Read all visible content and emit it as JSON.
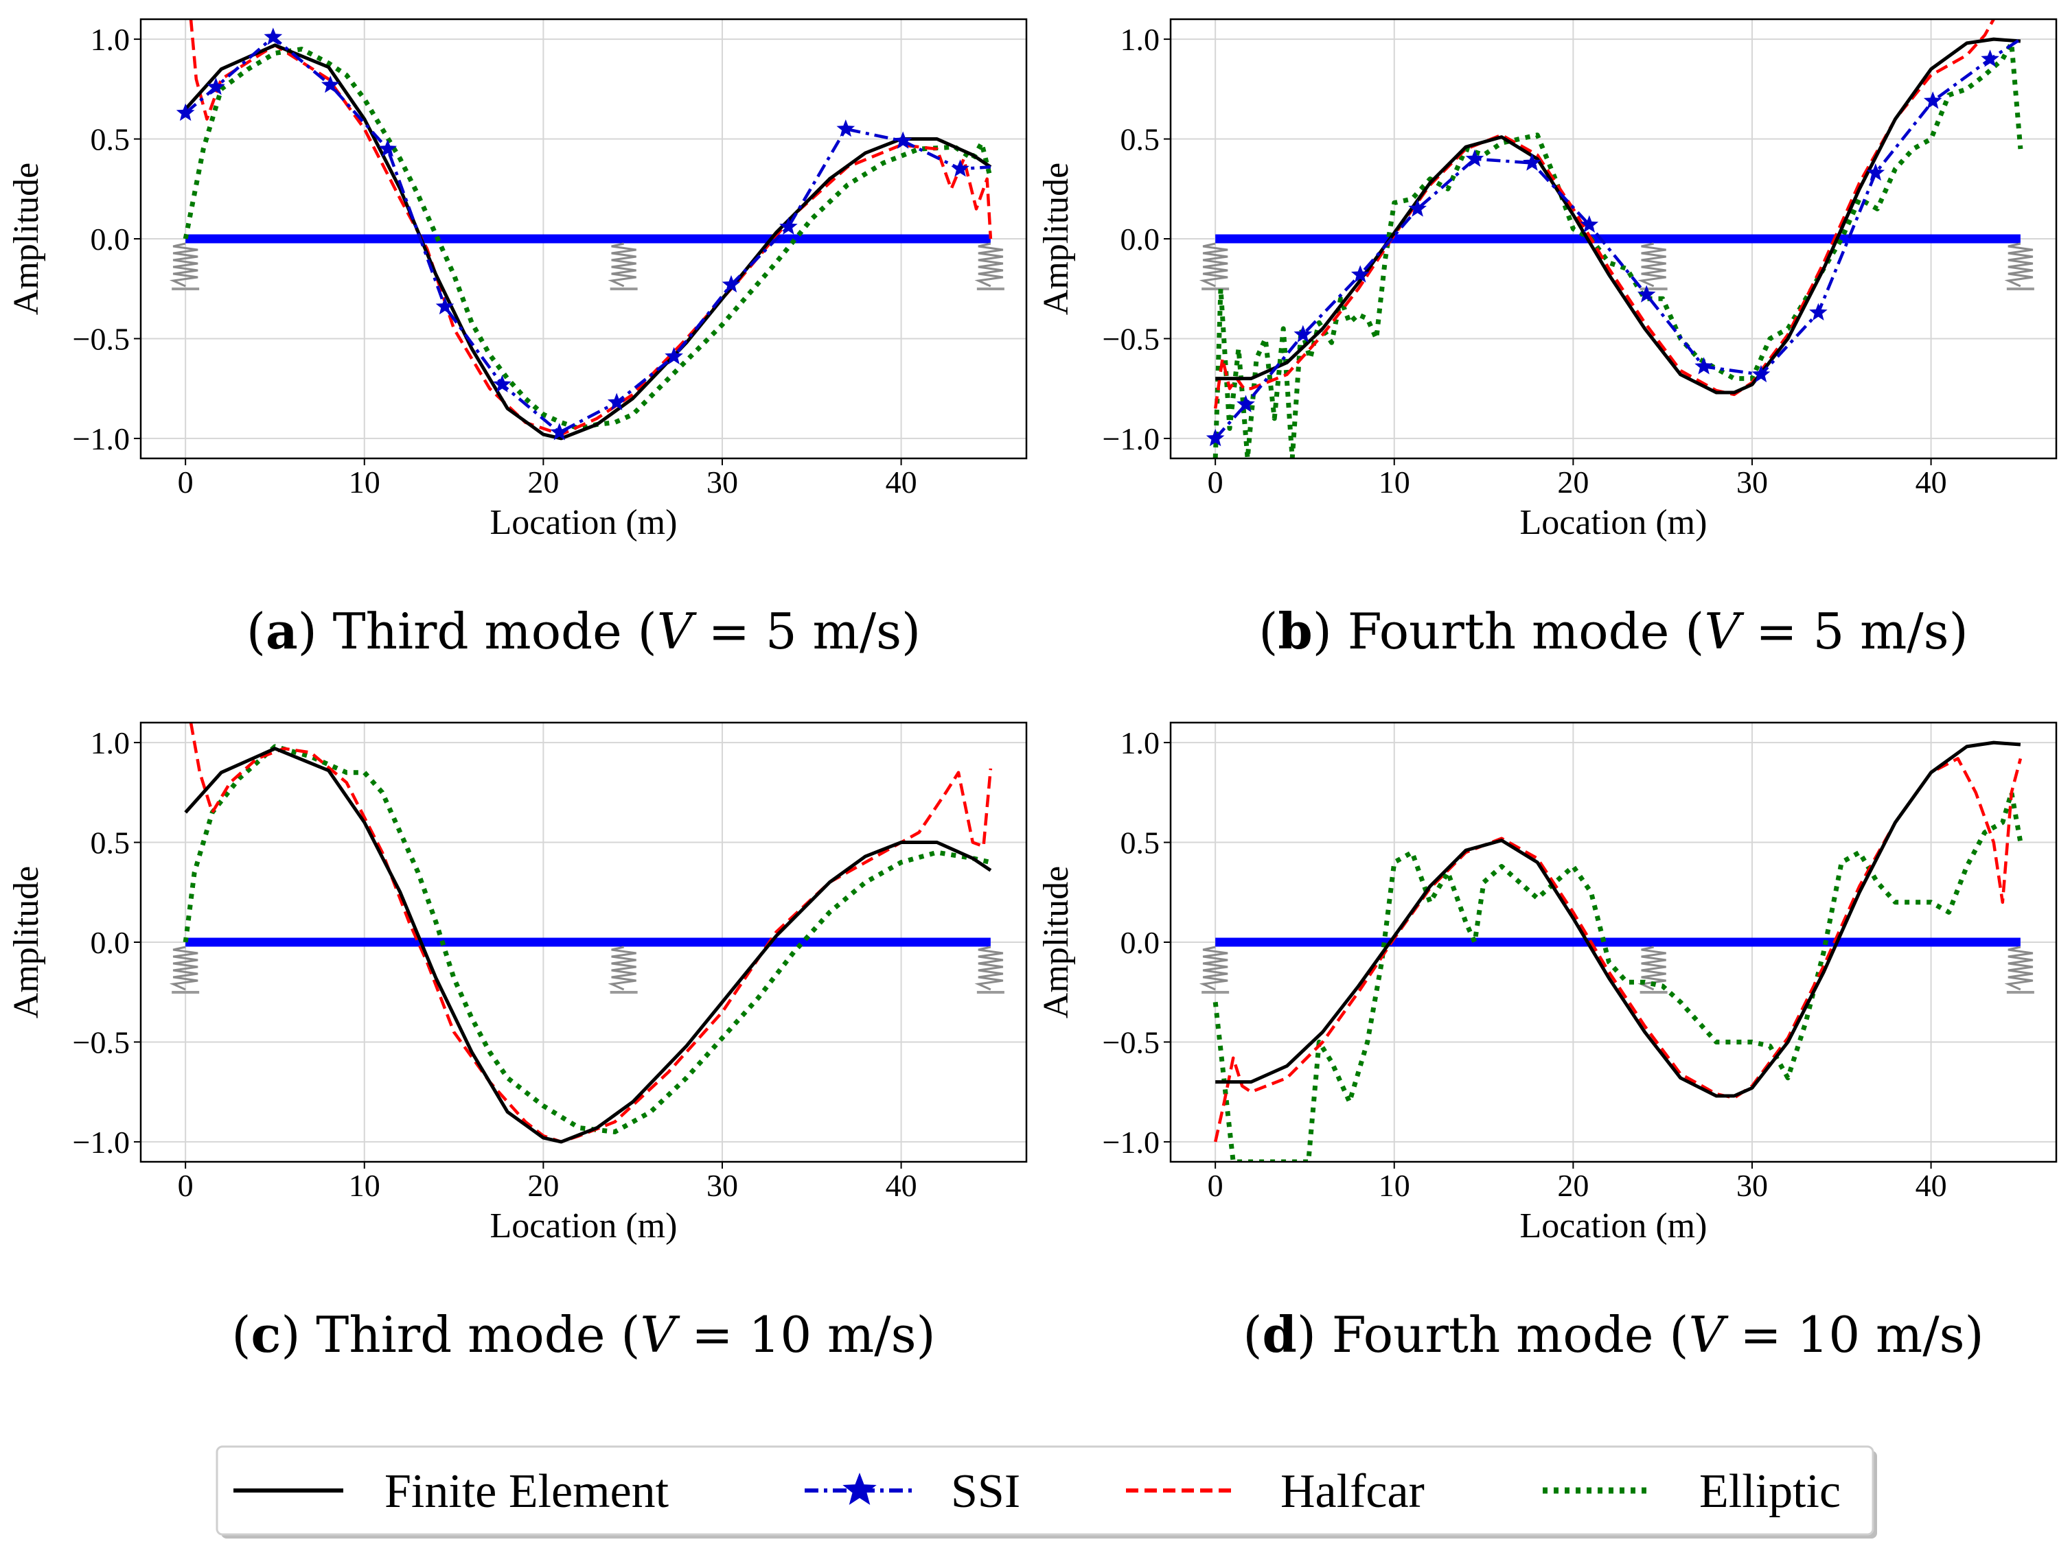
{
  "figure": {
    "legend": {
      "entries": [
        {
          "label": "Finite Element",
          "color": "#000000",
          "style": "solid"
        },
        {
          "label": "SSI",
          "color": "#0000cc",
          "style": "dashdot-star"
        },
        {
          "label": "Halfcar",
          "color": "#ff0000",
          "style": "dashed"
        },
        {
          "label": "Elliptic",
          "color": "#007a00",
          "style": "dotted"
        }
      ]
    },
    "beam_color": "#0000ff",
    "spring_locations": [
      0,
      24.5,
      45
    ]
  },
  "chart_data": [
    {
      "type": "line",
      "caption": {
        "letter": "a",
        "text": "Third mode (V = 5 m/s)",
        "mode": "Third mode",
        "speed": "5 m/s"
      },
      "xlabel": "Location (m)",
      "ylabel": "Amplitude",
      "xlim": [
        -2.5,
        47
      ],
      "ylim": [
        -1.1,
        1.1
      ],
      "xticks": [
        "0",
        "10",
        "20",
        "30",
        "40"
      ],
      "yticks": [
        "1.0",
        "0.5",
        "0.0",
        "−0.5",
        "−1.0"
      ],
      "series": [
        {
          "name": "Finite Element",
          "x": [
            0,
            2,
            5,
            8,
            10,
            12,
            14,
            16,
            18,
            20,
            21,
            23,
            25,
            28,
            30,
            33,
            36,
            38,
            40,
            42,
            44,
            45
          ],
          "y": [
            0.65,
            0.85,
            0.97,
            0.86,
            0.6,
            0.25,
            -0.18,
            -0.55,
            -0.85,
            -0.98,
            -1.0,
            -0.93,
            -0.8,
            -0.52,
            -0.3,
            0.03,
            0.3,
            0.43,
            0.5,
            0.5,
            0.42,
            0.36
          ]
        },
        {
          "name": "SSI",
          "x": [
            0,
            1.7,
            4.9,
            8.1,
            11.3,
            14.5,
            17.7,
            20.9,
            24.1,
            27.3,
            30.5,
            33.7,
            36.9,
            40.1,
            43.3,
            45
          ],
          "y": [
            0.63,
            0.76,
            1.01,
            0.77,
            0.45,
            -0.34,
            -0.73,
            -0.97,
            -0.82,
            -0.59,
            -0.23,
            0.06,
            0.55,
            0.49,
            0.35,
            0.36
          ]
        },
        {
          "name": "Halfcar",
          "x": [
            0.3,
            0.6,
            1.2,
            2,
            5,
            8,
            10,
            12,
            13.5,
            15,
            17,
            19,
            21,
            23,
            25,
            28,
            31,
            34,
            37,
            40,
            42,
            42.8,
            43.5,
            44.2,
            44.8,
            45
          ],
          "y": [
            1.1,
            0.8,
            0.6,
            0.8,
            0.97,
            0.8,
            0.55,
            0.2,
            -0.05,
            -0.45,
            -0.75,
            -0.92,
            -0.98,
            -0.9,
            -0.78,
            -0.5,
            -0.2,
            0.12,
            0.36,
            0.47,
            0.45,
            0.25,
            0.4,
            0.15,
            0.3,
            0.0
          ]
        },
        {
          "name": "Elliptic",
          "x": [
            0,
            1,
            2,
            3.5,
            5,
            6.5,
            8,
            9,
            10,
            11,
            12,
            13,
            14,
            15,
            16,
            17,
            18,
            19,
            20,
            21,
            22,
            23,
            24,
            25,
            27,
            30,
            33,
            35,
            37,
            39,
            41,
            43,
            44,
            44.5,
            45
          ],
          "y": [
            0.0,
            0.45,
            0.75,
            0.85,
            0.93,
            0.95,
            0.88,
            0.82,
            0.7,
            0.55,
            0.4,
            0.22,
            0.02,
            -0.18,
            -0.42,
            -0.58,
            -0.7,
            -0.8,
            -0.88,
            -0.92,
            -0.95,
            -0.93,
            -0.92,
            -0.88,
            -0.7,
            -0.43,
            -0.12,
            0.1,
            0.27,
            0.38,
            0.45,
            0.46,
            0.4,
            0.48,
            0.3
          ]
        }
      ]
    },
    {
      "type": "line",
      "caption": {
        "letter": "b",
        "text": "Fourth mode (V = 5 m/s)",
        "mode": "Fourth mode",
        "speed": "5 m/s"
      },
      "xlabel": "Location (m)",
      "ylabel": "Amplitude",
      "xlim": [
        -2.5,
        47
      ],
      "ylim": [
        -1.1,
        1.1
      ],
      "xticks": [
        "0",
        "10",
        "20",
        "30",
        "40"
      ],
      "yticks": [
        "1.0",
        "0.5",
        "0.0",
        "−0.5",
        "−1.0"
      ],
      "series": [
        {
          "name": "Finite Element",
          "x": [
            0,
            2,
            4,
            6,
            8,
            10,
            12,
            14,
            16,
            18,
            20,
            22,
            24,
            26,
            28,
            29,
            30,
            32,
            34,
            36,
            38,
            40,
            42,
            43.5,
            45
          ],
          "y": [
            -0.7,
            -0.7,
            -0.62,
            -0.45,
            -0.22,
            0.03,
            0.28,
            0.46,
            0.51,
            0.4,
            0.12,
            -0.18,
            -0.45,
            -0.68,
            -0.77,
            -0.77,
            -0.73,
            -0.5,
            -0.15,
            0.25,
            0.6,
            0.85,
            0.98,
            1.0,
            0.99
          ]
        },
        {
          "name": "SSI",
          "x": [
            0,
            1.7,
            4.9,
            8.1,
            11.3,
            14.5,
            17.7,
            20.9,
            24.1,
            27.3,
            30.5,
            33.7,
            36.9,
            40.1,
            43.3,
            45
          ],
          "y": [
            -1.0,
            -0.83,
            -0.48,
            -0.18,
            0.15,
            0.4,
            0.38,
            0.07,
            -0.28,
            -0.64,
            -0.68,
            -0.37,
            0.33,
            0.69,
            0.9,
            1.0
          ]
        },
        {
          "name": "Halfcar",
          "x": [
            0,
            0.4,
            0.8,
            1.2,
            1.6,
            2,
            4,
            6,
            8,
            10,
            12,
            14,
            16,
            18,
            20,
            22,
            24,
            26,
            28,
            29,
            30,
            32,
            34,
            36,
            38,
            40,
            42,
            43,
            43.5
          ],
          "y": [
            -0.85,
            -0.6,
            -0.75,
            -0.7,
            -0.75,
            -0.75,
            -0.68,
            -0.48,
            -0.25,
            0.02,
            0.27,
            0.45,
            0.52,
            0.42,
            0.15,
            -0.15,
            -0.42,
            -0.66,
            -0.76,
            -0.78,
            -0.72,
            -0.48,
            -0.12,
            0.28,
            0.6,
            0.82,
            0.92,
            1.02,
            1.1
          ]
        },
        {
          "name": "Elliptic",
          "x": [
            0,
            0.3,
            0.8,
            1.3,
            1.8,
            2.3,
            2.8,
            3.3,
            3.8,
            4.3,
            4.8,
            5.3,
            5.8,
            6.5,
            7,
            7.5,
            8,
            8.5,
            9,
            9.5,
            10,
            11,
            12,
            13,
            14,
            15,
            16,
            17,
            18,
            19,
            20,
            21,
            22,
            23,
            24,
            25,
            26,
            27,
            28,
            29,
            30,
            31,
            32,
            33,
            34,
            35,
            36,
            37,
            38,
            39,
            40,
            41,
            42,
            43,
            44,
            44.5,
            45
          ],
          "y": [
            -1.1,
            -0.25,
            -0.95,
            -0.55,
            -1.1,
            -0.6,
            -0.5,
            -0.9,
            -0.45,
            -1.1,
            -0.45,
            -0.6,
            -0.42,
            -0.52,
            -0.3,
            -0.42,
            -0.38,
            -0.4,
            -0.5,
            -0.1,
            0.18,
            0.2,
            0.3,
            0.25,
            0.45,
            0.42,
            0.48,
            0.5,
            0.52,
            0.3,
            0.05,
            0.0,
            -0.12,
            -0.15,
            -0.3,
            -0.3,
            -0.5,
            -0.6,
            -0.65,
            -0.7,
            -0.7,
            -0.5,
            -0.45,
            -0.3,
            -0.15,
            0.0,
            0.2,
            0.15,
            0.35,
            0.45,
            0.5,
            0.72,
            0.75,
            0.82,
            0.9,
            0.98,
            0.45
          ]
        }
      ]
    },
    {
      "type": "line",
      "caption": {
        "letter": "c",
        "text": "Third mode (V = 10 m/s)",
        "mode": "Third mode",
        "speed": "10 m/s"
      },
      "xlabel": "Location (m)",
      "ylabel": "Amplitude",
      "xlim": [
        -2.5,
        47
      ],
      "ylim": [
        -1.1,
        1.1
      ],
      "xticks": [
        "0",
        "10",
        "20",
        "30",
        "40"
      ],
      "yticks": [
        "1.0",
        "0.5",
        "0.0",
        "−0.5",
        "−1.0"
      ],
      "series": [
        {
          "name": "Finite Element",
          "x": [
            0,
            2,
            5,
            8,
            10,
            12,
            14,
            16,
            18,
            20,
            21,
            23,
            25,
            28,
            30,
            33,
            36,
            38,
            40,
            42,
            44,
            45
          ],
          "y": [
            0.65,
            0.85,
            0.97,
            0.86,
            0.6,
            0.25,
            -0.18,
            -0.55,
            -0.85,
            -0.98,
            -1.0,
            -0.93,
            -0.8,
            -0.52,
            -0.3,
            0.03,
            0.3,
            0.43,
            0.5,
            0.5,
            0.42,
            0.36
          ]
        },
        {
          "name": "SSI",
          "x": [],
          "y": []
        },
        {
          "name": "Halfcar",
          "x": [
            0.3,
            0.8,
            1.5,
            2.5,
            4,
            5.5,
            7,
            9,
            11,
            12.5,
            13.5,
            15,
            17,
            19,
            20,
            21,
            22,
            24,
            27,
            30,
            33,
            36,
            39,
            41,
            42.5,
            43.2,
            44,
            44.6,
            45
          ],
          "y": [
            1.1,
            0.85,
            0.65,
            0.8,
            0.92,
            0.97,
            0.95,
            0.8,
            0.45,
            0.1,
            -0.1,
            -0.45,
            -0.7,
            -0.9,
            -0.97,
            -1.0,
            -0.97,
            -0.9,
            -0.65,
            -0.35,
            0.05,
            0.3,
            0.45,
            0.55,
            0.75,
            0.85,
            0.5,
            0.48,
            0.87
          ]
        },
        {
          "name": "Elliptic",
          "x": [
            0,
            0.5,
            1.5,
            3,
            5,
            7,
            9,
            10,
            11,
            12,
            13,
            14,
            15,
            16,
            17,
            18,
            20,
            22,
            24,
            26,
            28,
            30,
            32,
            34,
            36,
            38,
            40,
            42,
            44,
            45
          ],
          "y": [
            0.0,
            0.35,
            0.65,
            0.82,
            0.98,
            0.93,
            0.85,
            0.85,
            0.75,
            0.55,
            0.35,
            0.1,
            -0.18,
            -0.38,
            -0.55,
            -0.68,
            -0.82,
            -0.93,
            -0.95,
            -0.85,
            -0.68,
            -0.48,
            -0.28,
            -0.05,
            0.15,
            0.3,
            0.4,
            0.45,
            0.42,
            0.4
          ]
        }
      ]
    },
    {
      "type": "line",
      "caption": {
        "letter": "d",
        "text": "Fourth mode (V = 10 m/s)",
        "mode": "Fourth mode",
        "speed": "10 m/s"
      },
      "xlabel": "Location (m)",
      "ylabel": "Amplitude",
      "xlim": [
        -2.5,
        47
      ],
      "ylim": [
        -1.1,
        1.1
      ],
      "xticks": [
        "0",
        "10",
        "20",
        "30",
        "40"
      ],
      "yticks": [
        "1.0",
        "0.5",
        "0.0",
        "−0.5",
        "−1.0"
      ],
      "series": [
        {
          "name": "Finite Element",
          "x": [
            0,
            2,
            4,
            6,
            8,
            10,
            12,
            14,
            16,
            18,
            20,
            22,
            24,
            26,
            28,
            29,
            30,
            32,
            34,
            36,
            38,
            40,
            42,
            43.5,
            45
          ],
          "y": [
            -0.7,
            -0.7,
            -0.62,
            -0.45,
            -0.22,
            0.03,
            0.28,
            0.46,
            0.51,
            0.4,
            0.12,
            -0.18,
            -0.45,
            -0.68,
            -0.77,
            -0.77,
            -0.73,
            -0.5,
            -0.15,
            0.25,
            0.6,
            0.85,
            0.98,
            1.0,
            0.99
          ]
        },
        {
          "name": "SSI",
          "x": [],
          "y": []
        },
        {
          "name": "Halfcar",
          "x": [
            0,
            0.5,
            1,
            1.5,
            2,
            4,
            6,
            8,
            10,
            12,
            14,
            16,
            18,
            20,
            22,
            24,
            26,
            28,
            29,
            30,
            32,
            34,
            36,
            38,
            40,
            41.5,
            42.5,
            43.5,
            44,
            44.5,
            45
          ],
          "y": [
            -1.0,
            -0.8,
            -0.58,
            -0.72,
            -0.75,
            -0.68,
            -0.5,
            -0.25,
            0.02,
            0.27,
            0.45,
            0.52,
            0.42,
            0.15,
            -0.15,
            -0.42,
            -0.66,
            -0.76,
            -0.78,
            -0.72,
            -0.48,
            -0.12,
            0.28,
            0.6,
            0.85,
            0.92,
            0.75,
            0.5,
            0.2,
            0.75,
            0.92
          ]
        },
        {
          "name": "Elliptic",
          "x": [
            0,
            0.5,
            1,
            1.5,
            2.5,
            3.5,
            4.5,
            5.2,
            5.8,
            6.5,
            7.5,
            8.5,
            9.3,
            10,
            11,
            12,
            13,
            14,
            14.5,
            15,
            16,
            17,
            18,
            19,
            20,
            21,
            22,
            23,
            24,
            25,
            26,
            27,
            28,
            29,
            30,
            31,
            32,
            33,
            34,
            35,
            36,
            37,
            38,
            40,
            41,
            42,
            43,
            44,
            44.5,
            45
          ],
          "y": [
            -0.3,
            -0.7,
            -1.1,
            -1.1,
            -1.1,
            -1.1,
            -1.1,
            -1.1,
            -0.5,
            -0.6,
            -0.8,
            -0.5,
            -0.1,
            0.4,
            0.45,
            0.2,
            0.35,
            0.1,
            0.0,
            0.3,
            0.38,
            0.3,
            0.22,
            0.3,
            0.38,
            0.25,
            -0.1,
            -0.2,
            -0.2,
            -0.22,
            -0.3,
            -0.4,
            -0.5,
            -0.5,
            -0.5,
            -0.52,
            -0.68,
            -0.4,
            -0.05,
            0.4,
            0.45,
            0.3,
            0.2,
            0.2,
            0.15,
            0.38,
            0.55,
            0.6,
            0.75,
            0.5
          ]
        }
      ]
    }
  ]
}
